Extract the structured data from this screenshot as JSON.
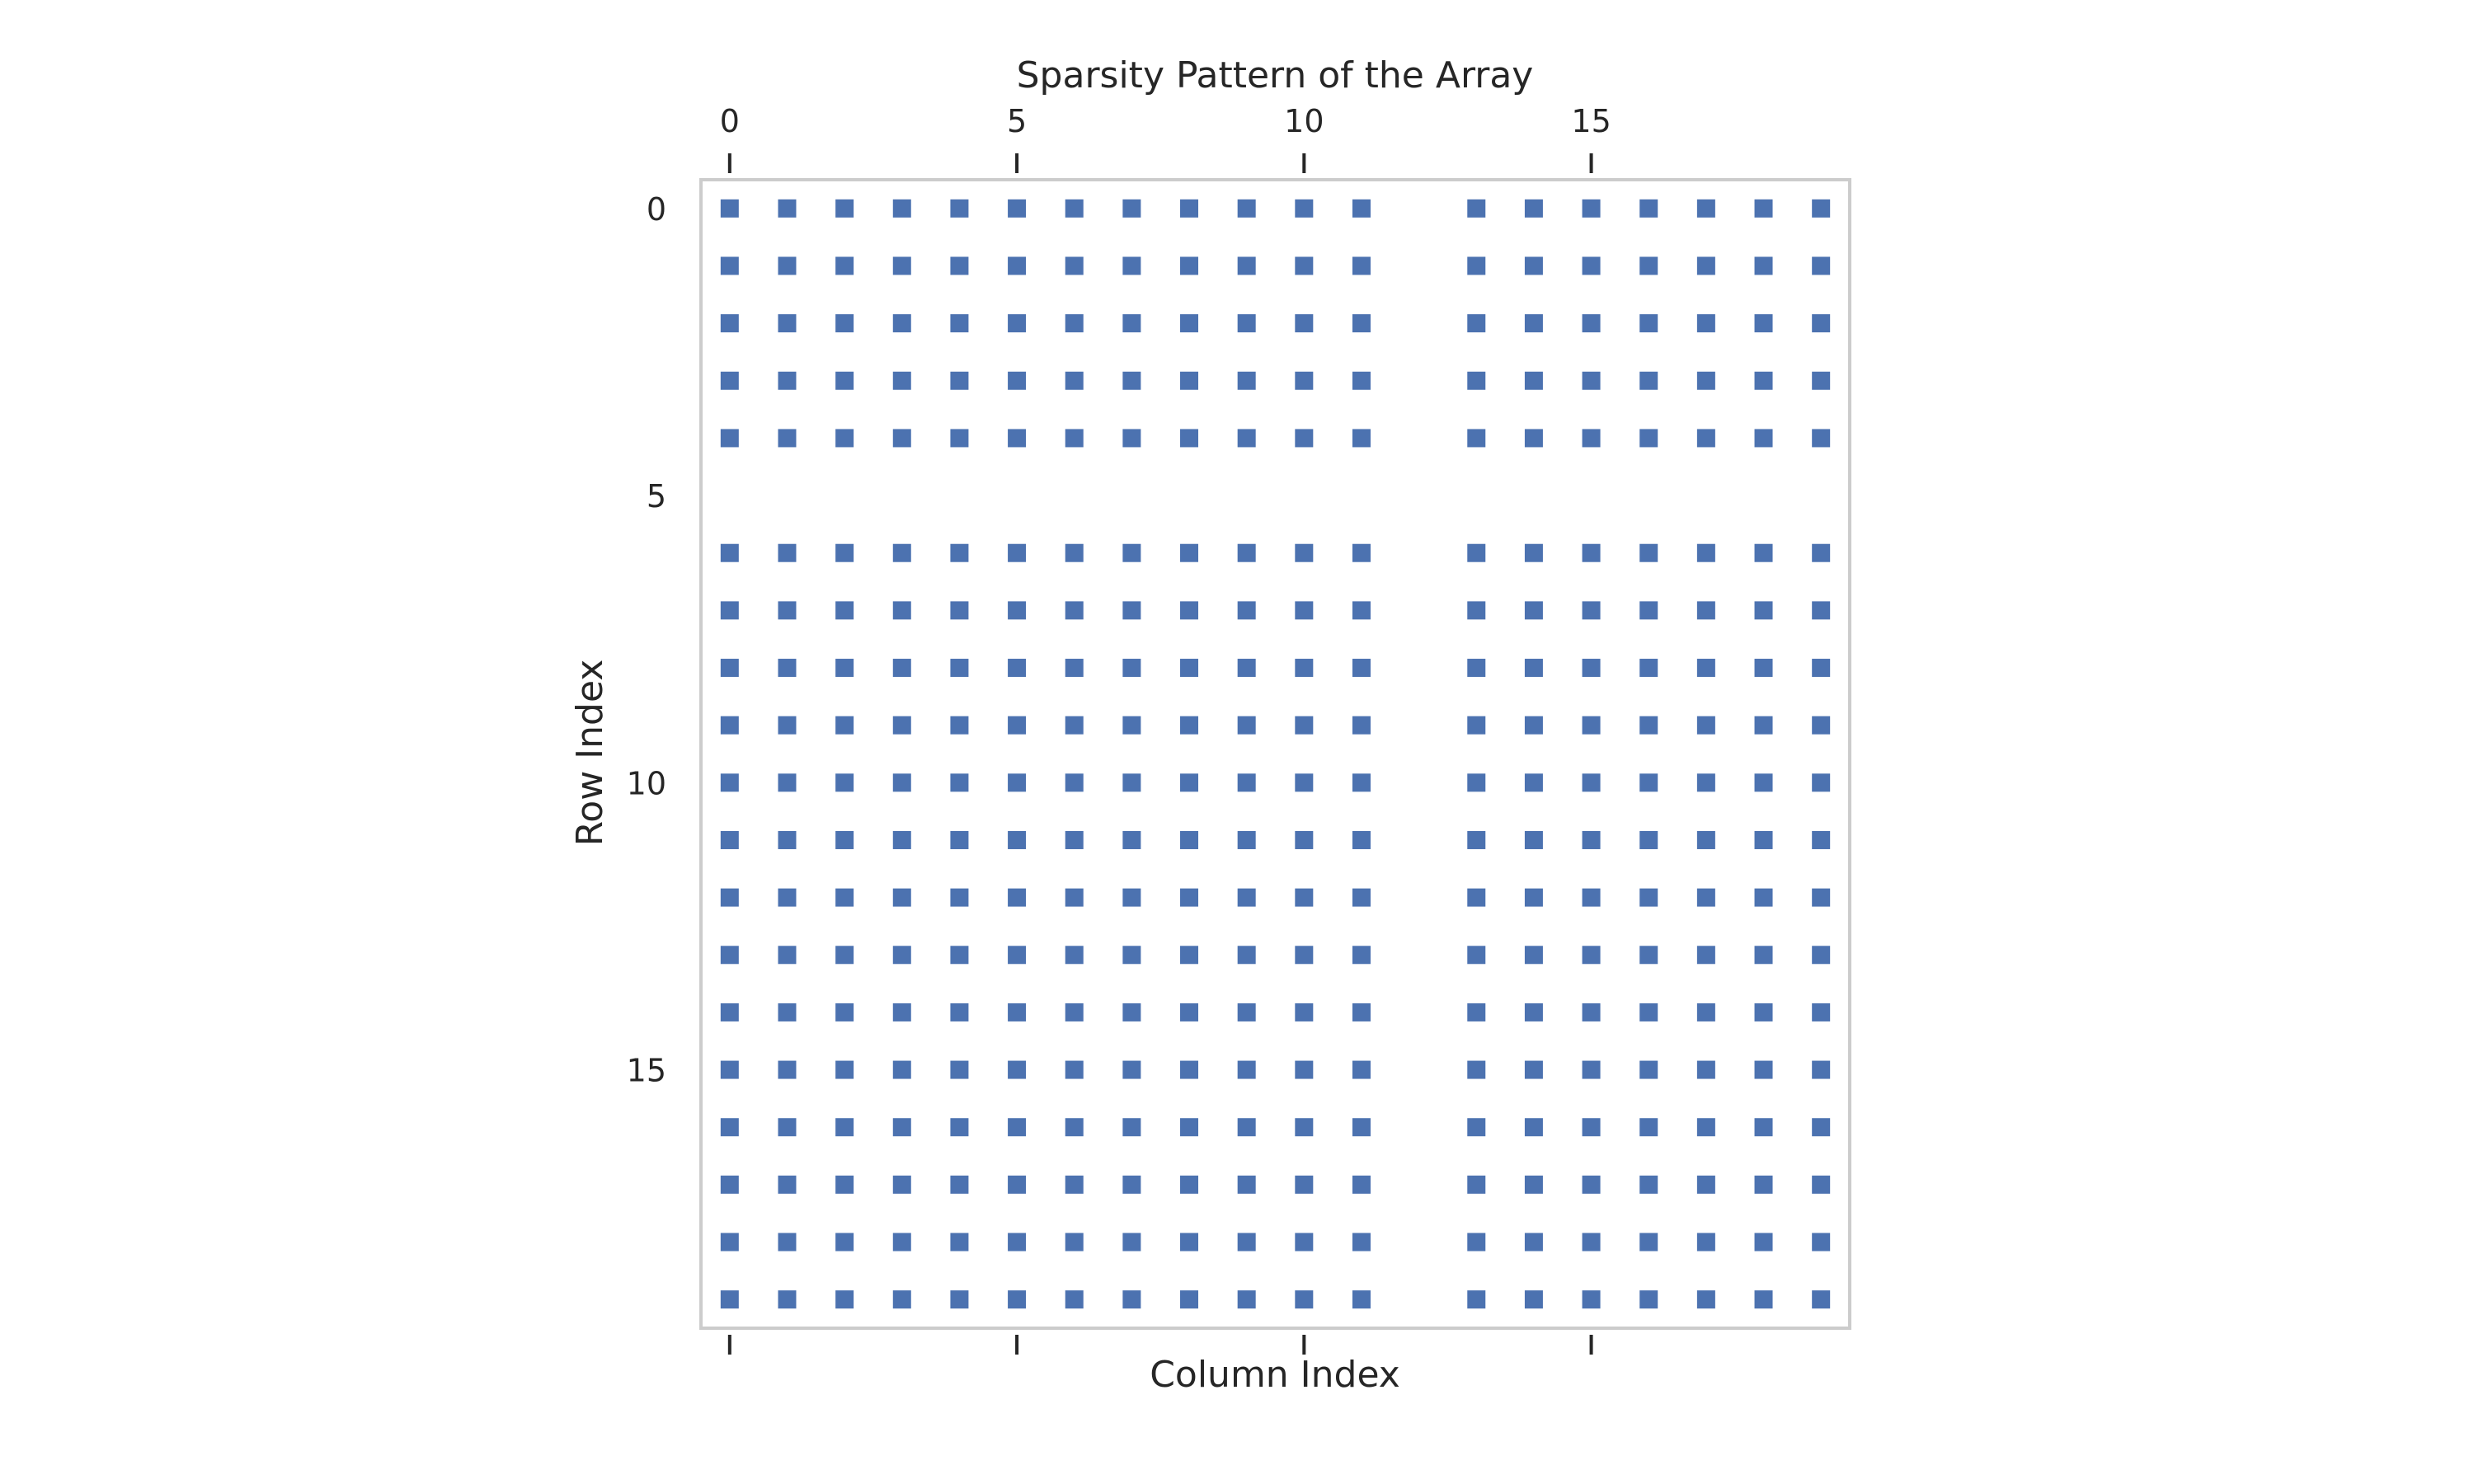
{
  "chart_data": {
    "type": "heatmap",
    "subtype": "sparsity-pattern",
    "title": "Sparsity Pattern of the Array",
    "xlabel": "Column Index",
    "ylabel": "Row Index",
    "n_rows": 20,
    "n_cols": 20,
    "xlim": [
      -0.5,
      19.5
    ],
    "ylim": [
      19.5,
      -0.5
    ],
    "x_ticks": [
      0,
      5,
      10,
      15
    ],
    "y_ticks": [
      0,
      5,
      10,
      15
    ],
    "x_tick_labels": [
      "0",
      "5",
      "10",
      "15"
    ],
    "y_tick_labels": [
      "0",
      "5",
      "10",
      "15"
    ],
    "x_tick_position": "top",
    "empty_rows": [
      5
    ],
    "empty_cols": [
      12
    ],
    "marker": "square",
    "marker_color": "#4c72b0",
    "frame_color": "#cccccc",
    "grid": false
  }
}
